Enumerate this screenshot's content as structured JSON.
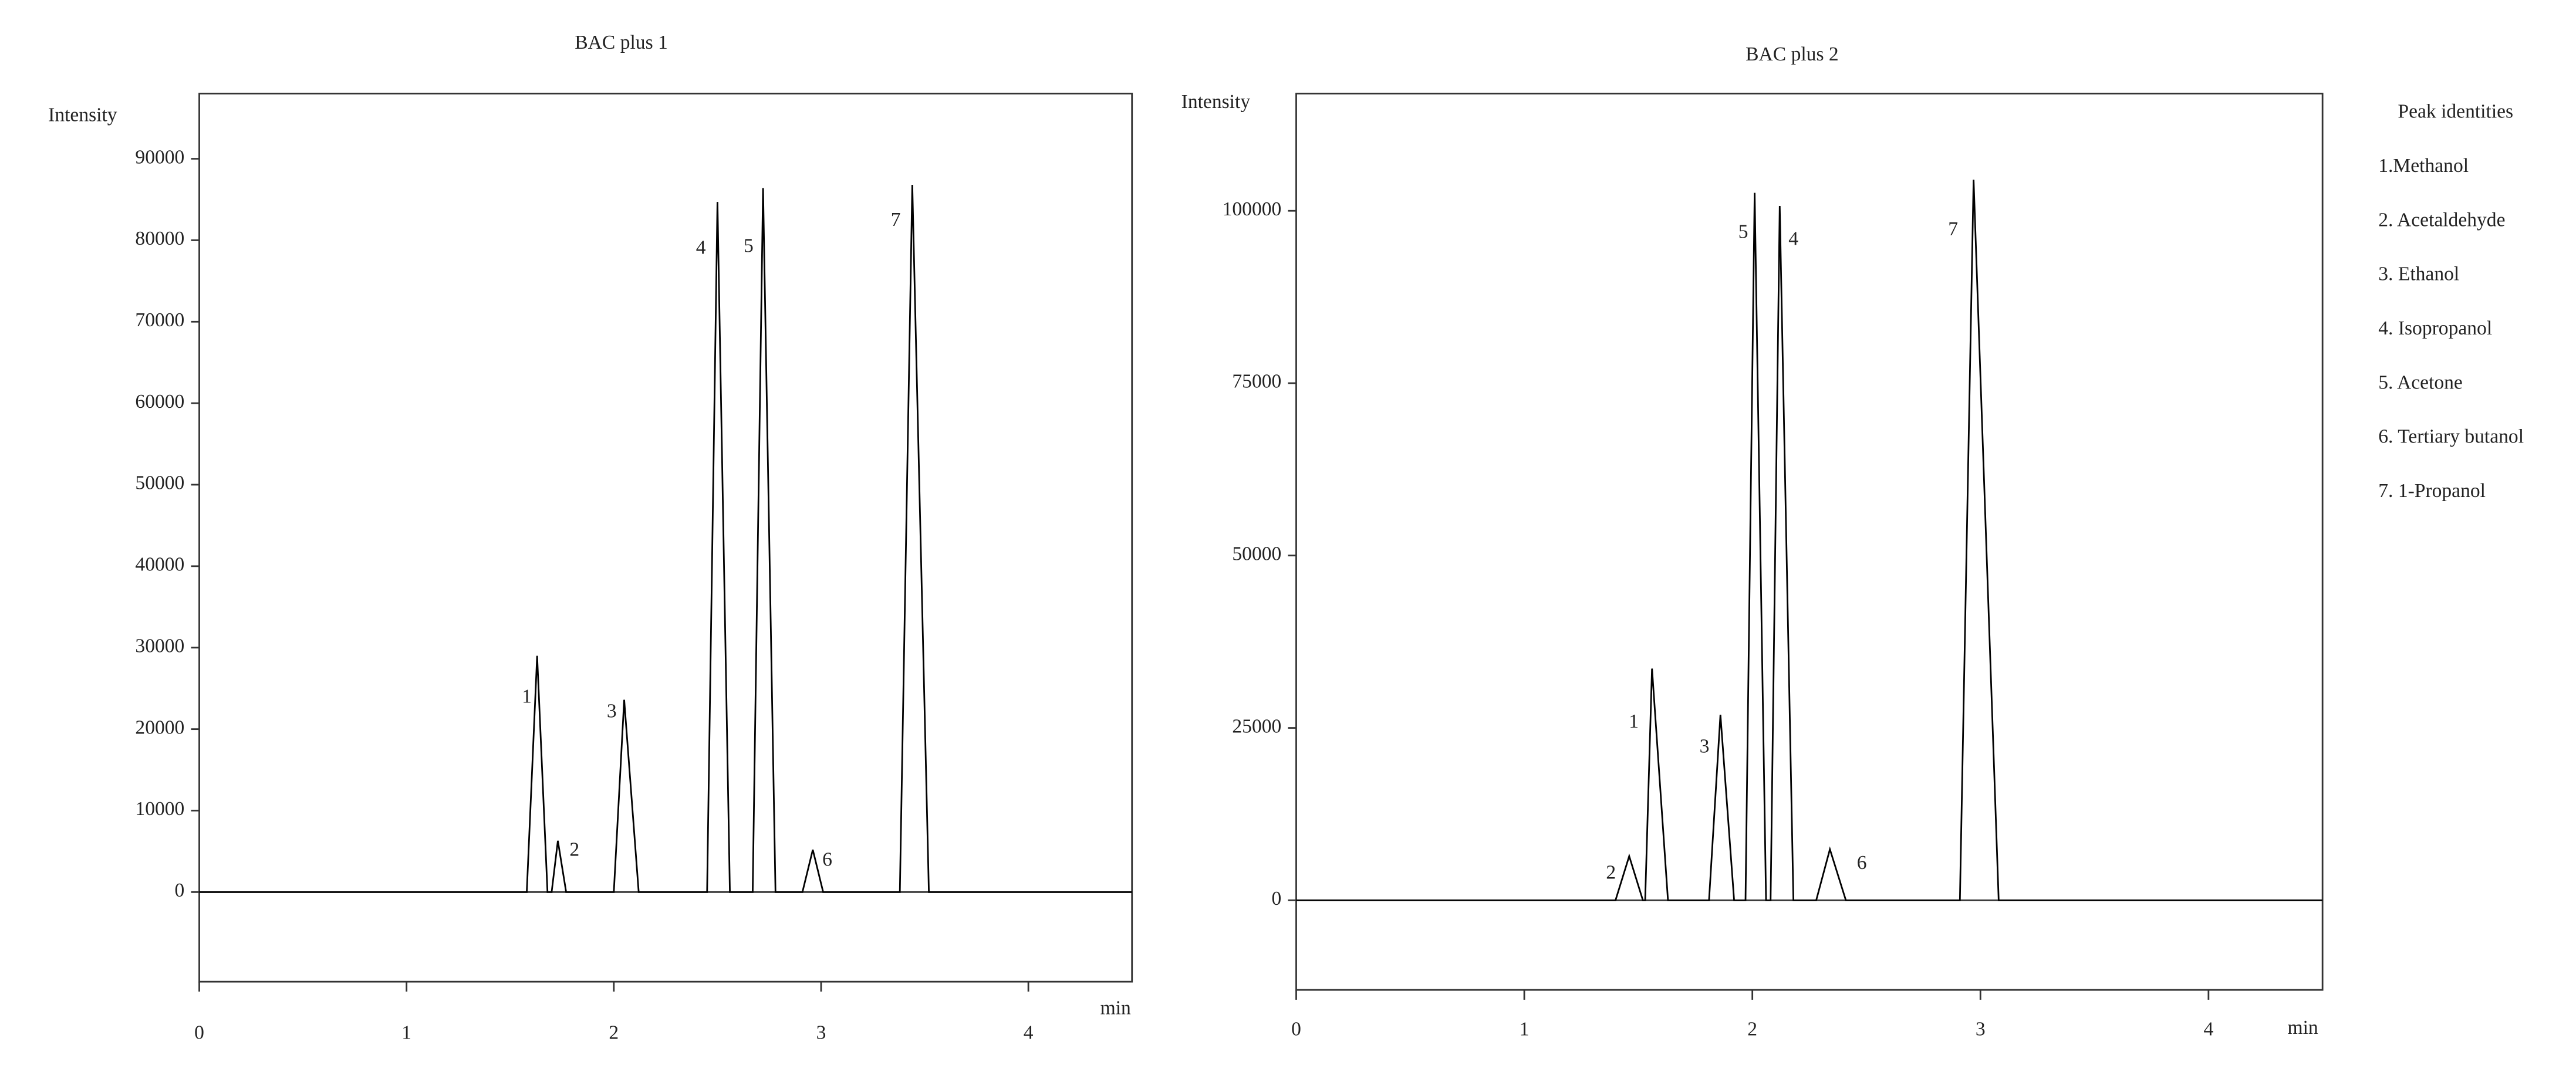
{
  "chart_data": [
    {
      "type": "line",
      "title": "BAC plus 1",
      "y_label": "Intensity",
      "x_label": "min",
      "x": [
        0,
        1.58,
        1.63,
        1.68,
        1.7,
        1.73,
        1.77,
        2.0,
        2.05,
        2.12,
        2.45,
        2.5,
        2.56,
        2.67,
        2.72,
        2.78,
        2.91,
        2.96,
        3.01,
        3.38,
        3.44,
        3.52,
        4.5
      ],
      "series": [
        {
          "color": "#000000",
          "values": [
            0,
            0,
            29000,
            0,
            0,
            6300,
            0,
            0,
            23600,
            0,
            0,
            84700,
            0,
            0,
            86400,
            0,
            0,
            5200,
            0,
            0,
            86800,
            0,
            0
          ]
        }
      ],
      "xlim": [
        0,
        4.5
      ],
      "xticks": [
        0,
        1,
        2,
        3,
        4
      ],
      "ylim": [
        -11000,
        98000
      ],
      "yticks": [
        0,
        10000,
        20000,
        30000,
        40000,
        50000,
        60000,
        70000,
        80000,
        90000
      ],
      "annotations": [
        {
          "text": "1",
          "x": 1.58,
          "y": 23800
        },
        {
          "text": "2",
          "x": 1.81,
          "y": 5000
        },
        {
          "text": "3",
          "x": 1.99,
          "y": 22000
        },
        {
          "text": "4",
          "x": 2.42,
          "y": 78900
        },
        {
          "text": "5",
          "x": 2.65,
          "y": 79100
        },
        {
          "text": "6",
          "x": 3.03,
          "y": 3800
        },
        {
          "text": "7",
          "x": 3.36,
          "y": 82300
        }
      ]
    },
    {
      "type": "line",
      "title": "BAC plus 2",
      "y_label": "Intensity",
      "x_label": "min",
      "x": [
        0,
        1.4,
        1.46,
        1.52,
        1.53,
        1.56,
        1.63,
        1.81,
        1.86,
        1.92,
        1.97,
        2.01,
        2.06,
        2.08,
        2.12,
        2.18,
        2.28,
        2.34,
        2.41,
        2.91,
        2.97,
        3.08,
        4.5
      ],
      "series": [
        {
          "color": "#000000",
          "values": [
            0,
            0,
            6400,
            0,
            0,
            33600,
            0,
            0,
            26900,
            0,
            0,
            102600,
            0,
            0,
            100700,
            0,
            0,
            7400,
            0,
            0,
            104500,
            0,
            0
          ]
        }
      ],
      "xlim": [
        0,
        4.5
      ],
      "xticks": [
        0,
        1,
        2,
        3,
        4
      ],
      "ylim": [
        -13000,
        117000
      ],
      "yticks": [
        0,
        25000,
        50000,
        75000,
        100000
      ],
      "annotations": [
        {
          "text": "2",
          "x": 1.38,
          "y": 3800
        },
        {
          "text": "1",
          "x": 1.48,
          "y": 25700
        },
        {
          "text": "3",
          "x": 1.79,
          "y": 22100
        },
        {
          "text": "5",
          "x": 1.96,
          "y": 96700
        },
        {
          "text": "4",
          "x": 2.18,
          "y": 95700
        },
        {
          "text": "6",
          "x": 2.48,
          "y": 5200
        },
        {
          "text": "7",
          "x": 2.88,
          "y": 97100
        }
      ]
    }
  ],
  "peak_identities": {
    "title": "Peak identities",
    "items": [
      "1.Methanol",
      "2. Acetaldehyde",
      "3. Ethanol",
      "4. Isopropanol",
      "5. Acetone",
      "6. Tertiary butanol",
      "7. 1-Propanol"
    ]
  }
}
